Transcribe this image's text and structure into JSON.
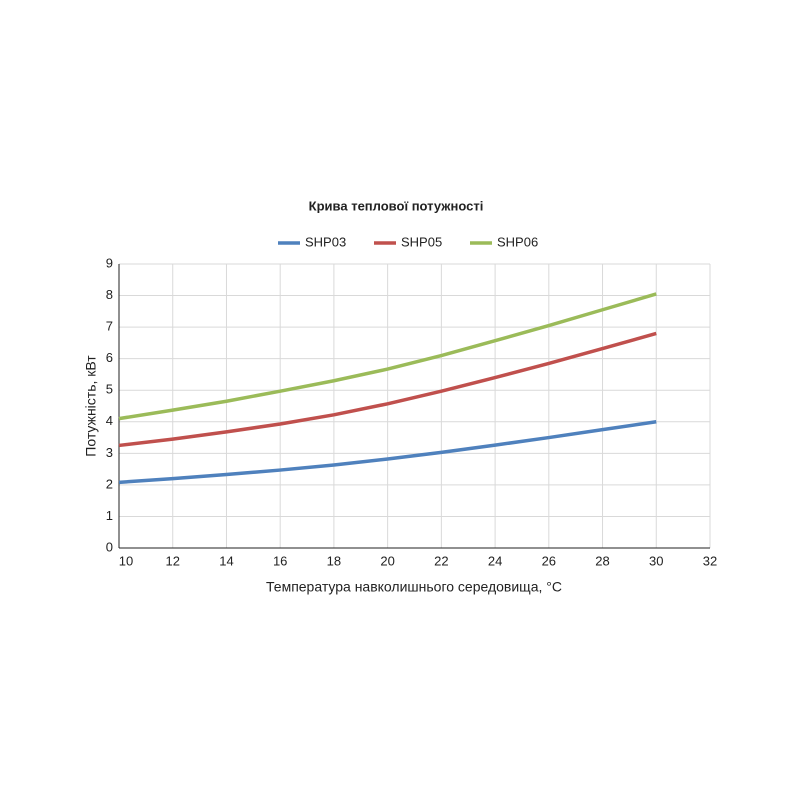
{
  "chart_data": {
    "type": "line",
    "title": "Крива теплової потужності",
    "x_label": "Температура навколишнього середовища, °C",
    "y_label": "Потужність, кВт",
    "x": [
      10,
      12,
      14,
      16,
      18,
      20,
      22,
      24,
      26,
      28,
      30
    ],
    "series": [
      {
        "name": "SHP03",
        "color": "#4f81bd",
        "values": [
          2.08,
          2.2,
          2.33,
          2.47,
          2.63,
          2.82,
          3.03,
          3.26,
          3.5,
          3.75,
          4.0
        ]
      },
      {
        "name": "SHP05",
        "color": "#c0504d",
        "values": [
          3.25,
          3.45,
          3.68,
          3.93,
          4.22,
          4.57,
          4.97,
          5.4,
          5.85,
          6.32,
          6.8
        ]
      },
      {
        "name": "SHP06",
        "color": "#9bbb59",
        "values": [
          4.1,
          4.37,
          4.65,
          4.97,
          5.3,
          5.67,
          6.1,
          6.57,
          7.05,
          7.55,
          8.05
        ]
      }
    ],
    "xlim": [
      10,
      32
    ],
    "xticks": [
      10,
      12,
      14,
      16,
      18,
      20,
      22,
      24,
      26,
      28,
      30,
      32
    ],
    "ylim": [
      0,
      9
    ],
    "yticks": [
      0,
      1,
      2,
      3,
      4,
      5,
      6,
      7,
      8,
      9
    ],
    "grid": true,
    "legend": "top"
  }
}
